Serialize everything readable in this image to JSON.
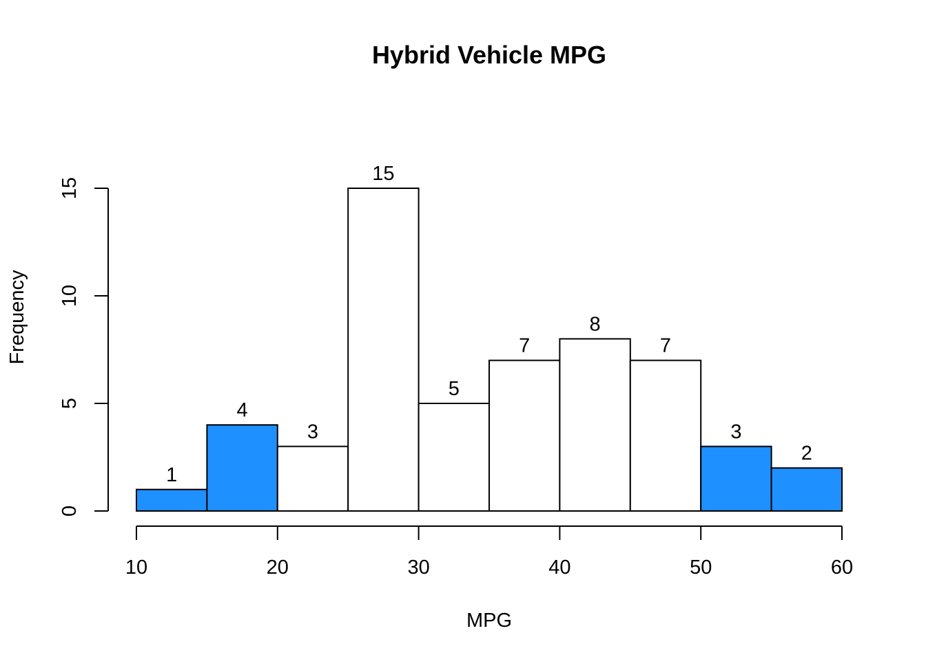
{
  "chart_data": {
    "type": "bar",
    "title": "Hybrid Vehicle MPG",
    "xlabel": "MPG",
    "ylabel": "Frequency",
    "bins": [
      {
        "x0": 10,
        "x1": 15,
        "count": 1,
        "highlight": true
      },
      {
        "x0": 15,
        "x1": 20,
        "count": 4,
        "highlight": true
      },
      {
        "x0": 20,
        "x1": 25,
        "count": 3,
        "highlight": false
      },
      {
        "x0": 25,
        "x1": 30,
        "count": 15,
        "highlight": false
      },
      {
        "x0": 30,
        "x1": 35,
        "count": 5,
        "highlight": false
      },
      {
        "x0": 35,
        "x1": 40,
        "count": 7,
        "highlight": false
      },
      {
        "x0": 40,
        "x1": 45,
        "count": 8,
        "highlight": false
      },
      {
        "x0": 45,
        "x1": 50,
        "count": 7,
        "highlight": false
      },
      {
        "x0": 50,
        "x1": 55,
        "count": 3,
        "highlight": true
      },
      {
        "x0": 55,
        "x1": 60,
        "count": 2,
        "highlight": true
      }
    ],
    "xticks": [
      10,
      20,
      30,
      40,
      50,
      60
    ],
    "yticks": [
      0,
      5,
      10,
      15
    ],
    "xlim": [
      10,
      60
    ],
    "ylim": [
      0,
      15
    ],
    "grid": false,
    "highlight_color": "#1E90FF",
    "normal_color": "#FFFFFF"
  }
}
